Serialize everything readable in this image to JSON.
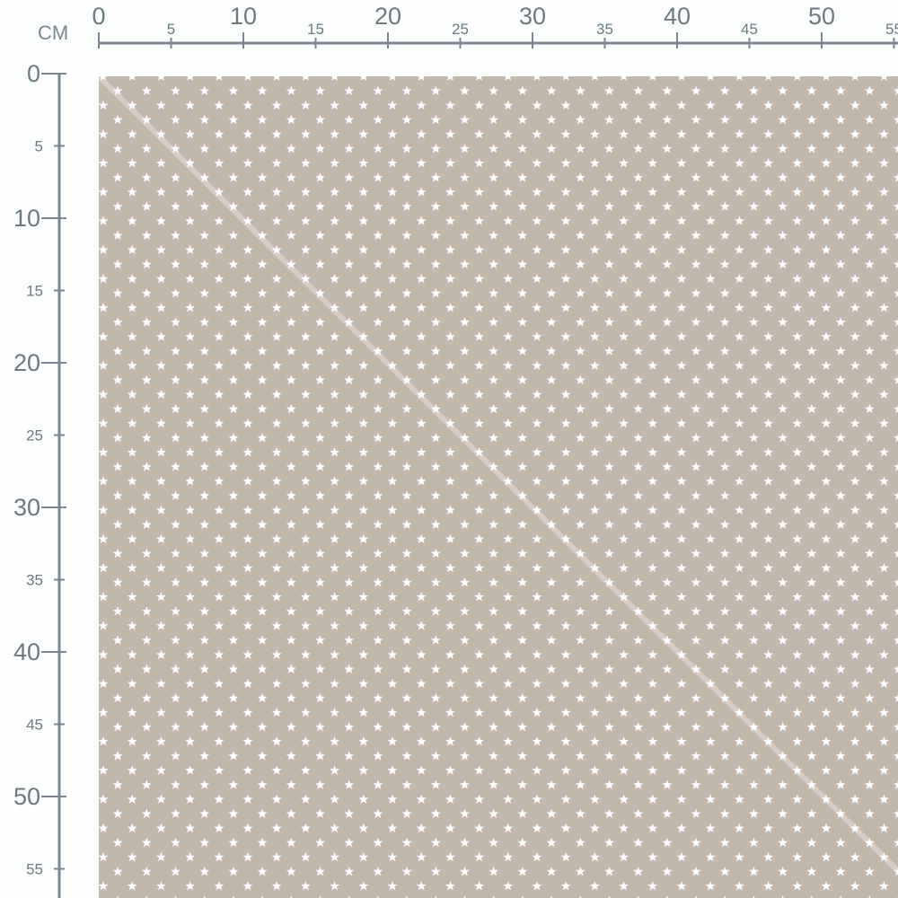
{
  "unit_label": "CM",
  "top_ruler": {
    "labels": [
      "0",
      "5",
      "10",
      "15",
      "20",
      "25",
      "30",
      "35",
      "40",
      "45",
      "50",
      "55"
    ]
  },
  "left_ruler": {
    "labels": [
      "0",
      "5",
      "10",
      "15",
      "20",
      "25",
      "30",
      "35",
      "40",
      "45",
      "50",
      "55"
    ]
  },
  "fabric": {
    "pattern": "star-icon",
    "background_color": "#c2b7ad",
    "star_color": "#ffffff",
    "fold_line": "diagonal"
  },
  "ruler_color": "#7c858d"
}
